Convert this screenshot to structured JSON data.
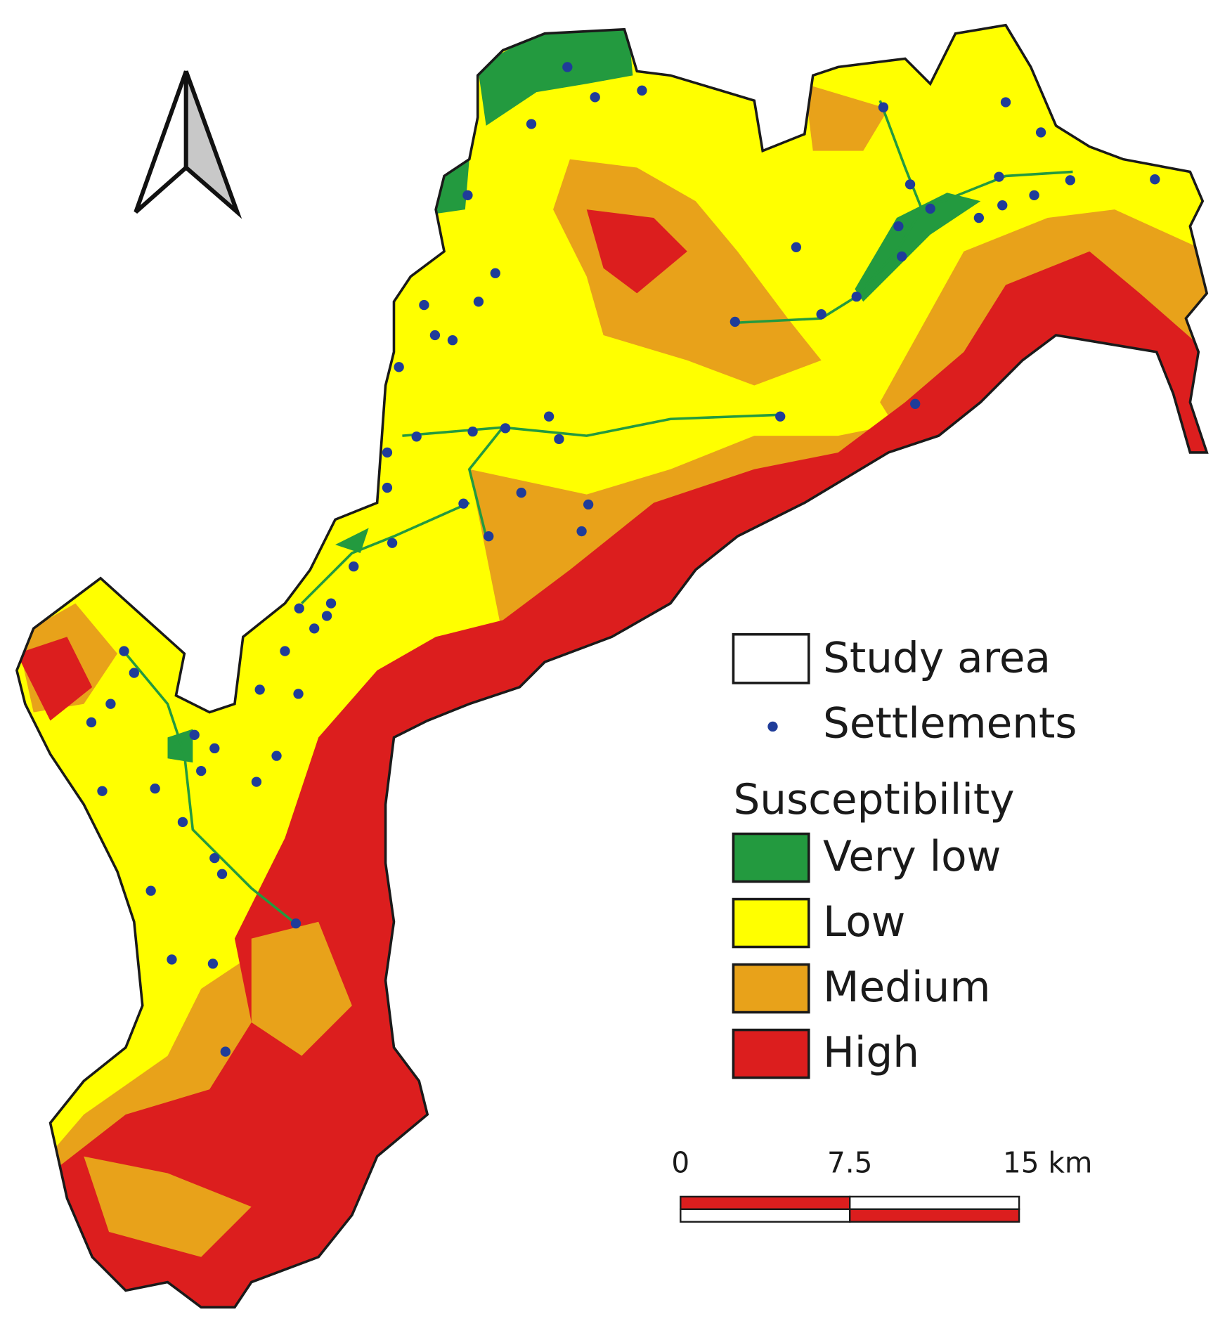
{
  "legend": {
    "study_area": "Study area",
    "settlements": "Settlements",
    "title": "Susceptibility",
    "items": [
      {
        "label": "Very low",
        "color": "#239a3f"
      },
      {
        "label": "Low",
        "color": "#ffff00"
      },
      {
        "label": "Medium",
        "color": "#e8a21a"
      },
      {
        "label": "High",
        "color": "#dc1e1e"
      }
    ]
  },
  "scale_bar": {
    "labels": [
      "0",
      "7.5",
      "15 km"
    ]
  }
}
